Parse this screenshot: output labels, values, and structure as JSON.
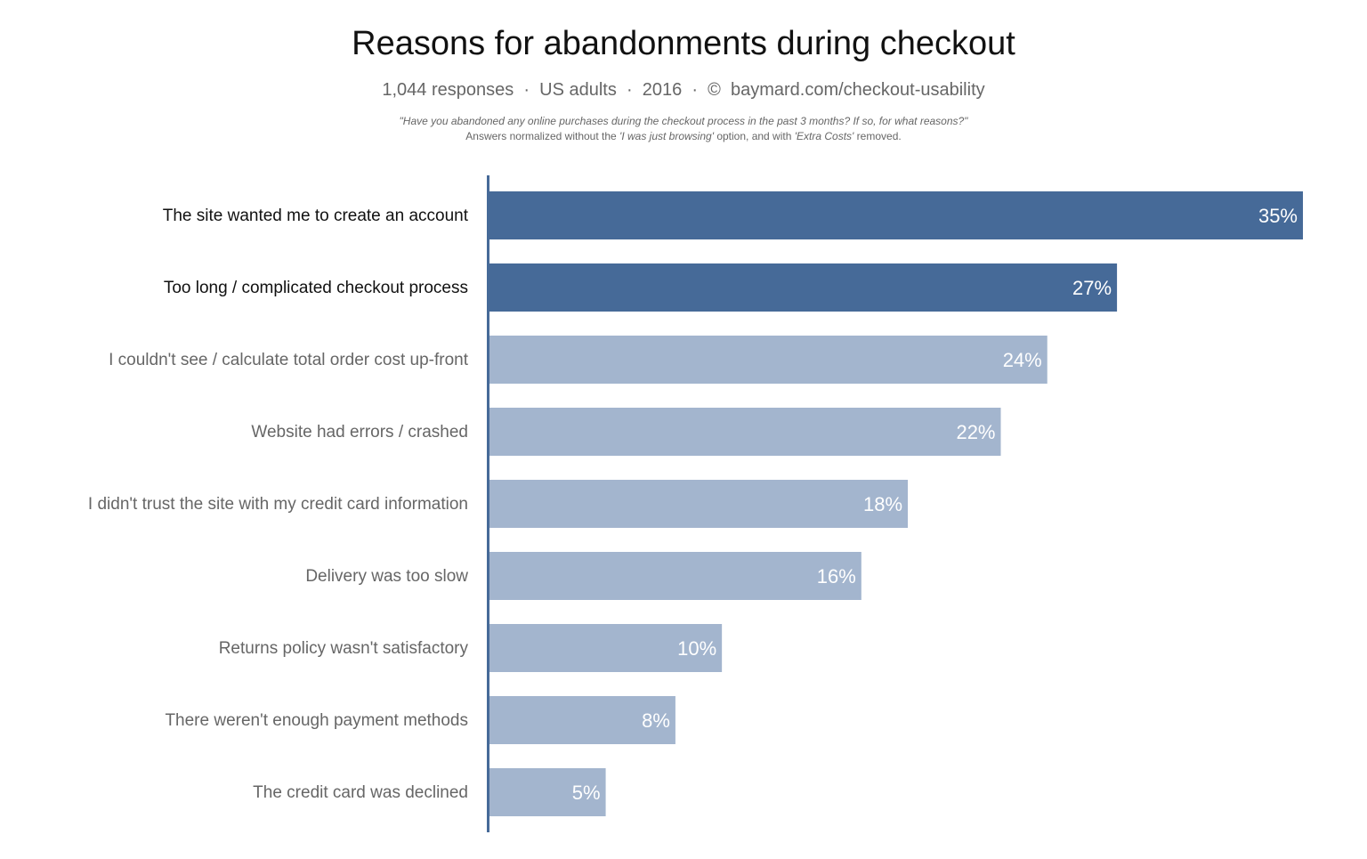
{
  "chart_data": {
    "type": "bar",
    "orientation": "horizontal",
    "title": "Reasons for abandonments during checkout",
    "subtitle": "1,044 responses  ·  US adults  ·  2016  ·  ©  baymard.com/checkout-usability",
    "note_question": "\"Have you abandoned any online purchases during the checkout process in the past 3 months? If so, for what reasons?\"",
    "note_method_parts": [
      "Answers normalized without the ",
      "'I was just browsing'",
      " option, and with ",
      "'Extra Costs'",
      " removed."
    ],
    "categories": [
      "The site wanted me to create an account",
      "Too long / complicated checkout process",
      "I couldn't see / calculate total order cost up-front",
      "Website had errors / crashed",
      "I didn't trust the site with my credit card information",
      "Delivery was too slow",
      "Returns policy wasn't satisfactory",
      "There weren't enough payment methods",
      "The credit card was declined"
    ],
    "values": [
      35,
      27,
      24,
      22,
      18,
      16,
      10,
      8,
      5
    ],
    "value_labels": [
      "35%",
      "27%",
      "24%",
      "22%",
      "18%",
      "16%",
      "10%",
      "8%",
      "5%"
    ],
    "highlighted": [
      true,
      true,
      false,
      false,
      false,
      false,
      false,
      false,
      false
    ],
    "xlim": [
      0,
      35
    ],
    "unit": "%",
    "grid": false,
    "legend": "none",
    "colors": {
      "highlight": "#466a98",
      "normal": "#a3b5ce",
      "axis": "#466a98",
      "label_highlight": "#111111",
      "label_normal": "#666666",
      "value_label": "#ffffff"
    }
  }
}
